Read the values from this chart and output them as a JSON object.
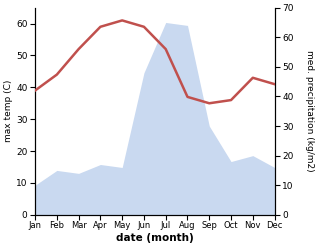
{
  "months": [
    "Jan",
    "Feb",
    "Mar",
    "Apr",
    "May",
    "Jun",
    "Jul",
    "Aug",
    "Sep",
    "Oct",
    "Nov",
    "Dec"
  ],
  "temperature": [
    39,
    44,
    52,
    59,
    61,
    59,
    52,
    37,
    35,
    36,
    43,
    41
  ],
  "precipitation": [
    10,
    15,
    14,
    17,
    16,
    48,
    65,
    64,
    30,
    18,
    20,
    16
  ],
  "temp_color": "#c0504d",
  "precip_fill_color": "#c9d9f0",
  "temp_ylim": [
    0,
    65
  ],
  "precip_ylim": [
    0,
    70
  ],
  "temp_yticks": [
    0,
    10,
    20,
    30,
    40,
    50,
    60
  ],
  "precip_yticks": [
    0,
    10,
    20,
    30,
    40,
    50,
    60,
    70
  ],
  "ylabel_left": "max temp (C)",
  "ylabel_right": "med. precipitation (kg/m2)",
  "xlabel": "date (month)"
}
